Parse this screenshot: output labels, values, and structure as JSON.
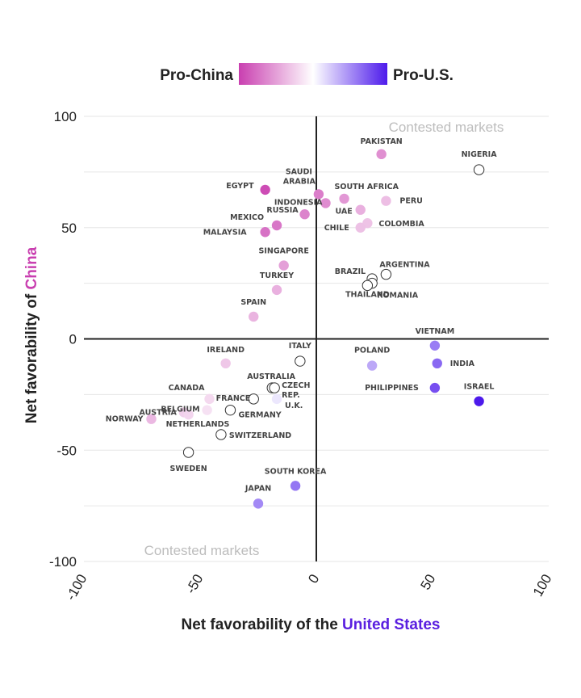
{
  "legend": {
    "left_label": "Pro-China",
    "right_label": "Pro-U.S."
  },
  "colors": {
    "pro_china": "#c93fb0",
    "pro_us": "#4d1aeb",
    "neutral": "#ffffff",
    "axis": "#222222",
    "grid": "#e6e6e6",
    "china_accent": "#c93fb0",
    "us_accent": "#5a1fe0"
  },
  "corner_labels": {
    "top_right": "Contested markets",
    "bottom_left": "Contested markets"
  },
  "chart_data": {
    "type": "scatter",
    "xlabel": {
      "prefix": "Net favorability of the ",
      "highlight": "United States"
    },
    "ylabel": {
      "prefix": "Net favorability of ",
      "highlight": "China"
    },
    "xlim": [
      -100,
      100
    ],
    "ylim": [
      -100,
      100
    ],
    "xticks": [
      "-100",
      "-50",
      "0",
      "50",
      "100"
    ],
    "yticks": [
      "100",
      "50",
      "0",
      "-50",
      "-100"
    ],
    "grid": true,
    "legend_position": "top-center",
    "points": [
      {
        "label": "PAKISTAN",
        "x": 28,
        "y": 83
      },
      {
        "label": "NIGERIA",
        "x": 70,
        "y": 76
      },
      {
        "label": "EGYPT",
        "x": -22,
        "y": 67
      },
      {
        "label": "SAUDI ARABIA",
        "x": 1,
        "y": 65
      },
      {
        "label": "INDONESIA",
        "x": 4,
        "y": 61
      },
      {
        "label": "SOUTH AFRICA",
        "x": 12,
        "y": 63
      },
      {
        "label": "PERU",
        "x": 30,
        "y": 62
      },
      {
        "label": "RUSSIA",
        "x": -5,
        "y": 56
      },
      {
        "label": "UAE",
        "x": 19,
        "y": 58
      },
      {
        "label": "COLOMBIA",
        "x": 22,
        "y": 52
      },
      {
        "label": "CHILE",
        "x": 19,
        "y": 50
      },
      {
        "label": "MEXICO",
        "x": -17,
        "y": 51
      },
      {
        "label": "MALAYSIA",
        "x": -22,
        "y": 48
      },
      {
        "label": "SINGAPORE",
        "x": -14,
        "y": 33
      },
      {
        "label": "ARGENTINA",
        "x": 30,
        "y": 29
      },
      {
        "label": "BRAZIL",
        "x": 24,
        "y": 27
      },
      {
        "label": "ROMANIA",
        "x": 24,
        "y": 25
      },
      {
        "label": "THAILAND",
        "x": 22,
        "y": 24
      },
      {
        "label": "TURKEY",
        "x": -17,
        "y": 22
      },
      {
        "label": "SPAIN",
        "x": -27,
        "y": 10
      },
      {
        "label": "VIETNAM",
        "x": 51,
        "y": -3
      },
      {
        "label": "ITALY",
        "x": -7,
        "y": -10
      },
      {
        "label": "IRELAND",
        "x": -39,
        "y": -11
      },
      {
        "label": "POLAND",
        "x": 24,
        "y": -12
      },
      {
        "label": "INDIA",
        "x": 52,
        "y": -11
      },
      {
        "label": "PHILIPPINES",
        "x": 51,
        "y": -22
      },
      {
        "label": "ISRAEL",
        "x": 70,
        "y": -28
      },
      {
        "label": "AUSTRALIA",
        "x": -19,
        "y": -22
      },
      {
        "label": "CZECH REP.",
        "x": -18,
        "y": -22
      },
      {
        "label": "FRANCE",
        "x": -27,
        "y": -27
      },
      {
        "label": "U.K.",
        "x": -17,
        "y": -27
      },
      {
        "label": "CANADA",
        "x": -46,
        "y": -27
      },
      {
        "label": "BELGIUM",
        "x": -47,
        "y": -32
      },
      {
        "label": "GERMANY",
        "x": -37,
        "y": -32
      },
      {
        "label": "AUSTRIA",
        "x": -57,
        "y": -33
      },
      {
        "label": "NETHERLANDS",
        "x": -55,
        "y": -34
      },
      {
        "label": "NORWAY",
        "x": -71,
        "y": -36
      },
      {
        "label": "SWITZERLAND",
        "x": -41,
        "y": -43
      },
      {
        "label": "SWEDEN",
        "x": -55,
        "y": -51
      },
      {
        "label": "SOUTH KOREA",
        "x": -9,
        "y": -66
      },
      {
        "label": "JAPAN",
        "x": -25,
        "y": -74
      }
    ]
  }
}
